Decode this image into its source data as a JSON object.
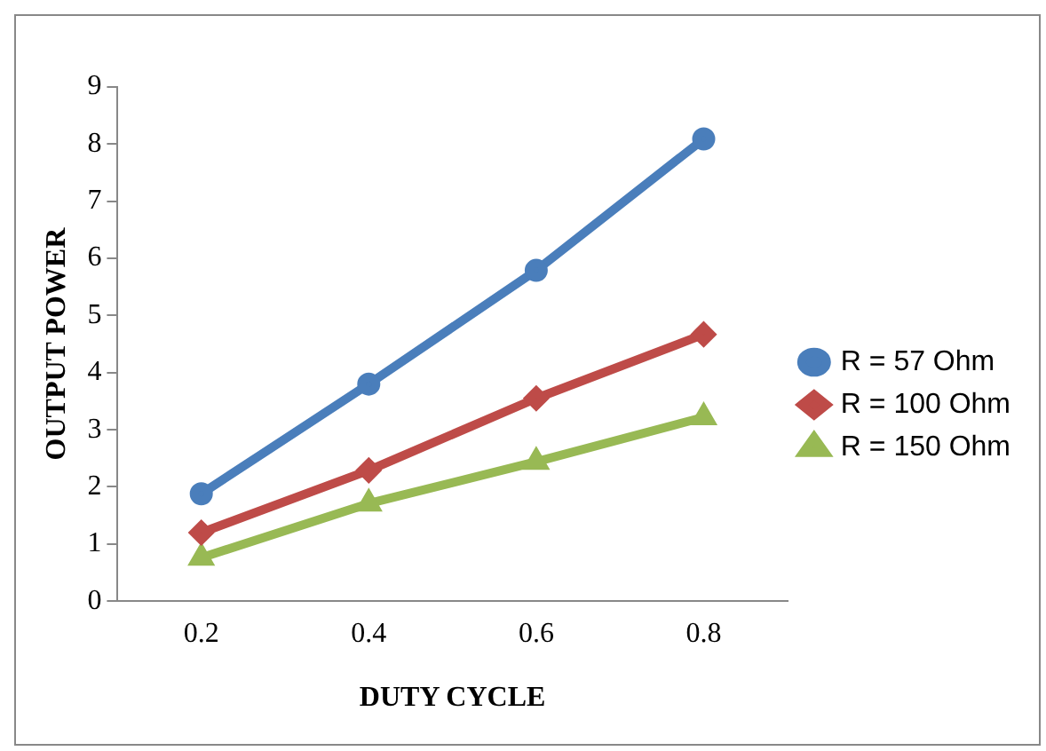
{
  "chart_data": {
    "type": "line",
    "xlabel": "DUTY CYCLE",
    "ylabel": "OUTPUT POWER",
    "categories": [
      "0.2",
      "0.4",
      "0.6",
      "0.8"
    ],
    "series": [
      {
        "name": "R = 57 Ohm",
        "color": "#4a7ebb",
        "marker": "circle",
        "values": [
          1.88,
          3.8,
          5.79,
          8.09
        ]
      },
      {
        "name": "R = 100 Ohm",
        "color": "#be4b48",
        "marker": "diamond",
        "values": [
          1.2,
          2.29,
          3.55,
          4.67
        ]
      },
      {
        "name": "R = 150 Ohm",
        "color": "#98b954",
        "marker": "triangle",
        "values": [
          0.76,
          1.71,
          2.44,
          3.22
        ]
      }
    ],
    "ylim": [
      0,
      9
    ],
    "yticks": [
      0,
      1,
      2,
      3,
      4,
      5,
      6,
      7,
      8,
      9
    ],
    "grid": false,
    "legend": "right"
  }
}
